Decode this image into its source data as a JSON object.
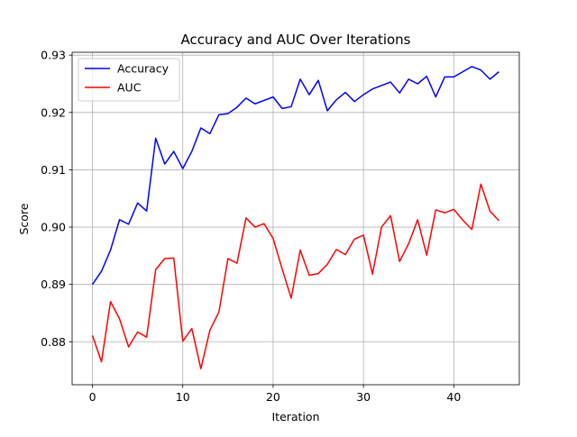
{
  "chart_data": {
    "type": "line",
    "title": "Accuracy and AUC Over Iterations",
    "xlabel": "Iteration",
    "ylabel": "Score",
    "xlim": [
      -2.25,
      47.25
    ],
    "ylim": [
      0.8725,
      0.9305
    ],
    "xticks": [
      0,
      10,
      20,
      30,
      40
    ],
    "xtick_labels": [
      "0",
      "10",
      "20",
      "30",
      "40"
    ],
    "yticks": [
      0.88,
      0.89,
      0.9,
      0.91,
      0.92,
      0.93
    ],
    "ytick_labels": [
      "0.88",
      "0.89",
      "0.90",
      "0.91",
      "0.92",
      "0.93"
    ],
    "grid": true,
    "legend_position": "top-left",
    "x": [
      0,
      1,
      2,
      3,
      4,
      5,
      6,
      7,
      8,
      9,
      10,
      11,
      12,
      13,
      14,
      15,
      16,
      17,
      18,
      19,
      20,
      21,
      22,
      23,
      24,
      25,
      26,
      27,
      28,
      29,
      30,
      31,
      32,
      33,
      34,
      35,
      36,
      37,
      38,
      39,
      40,
      41,
      42,
      43,
      44,
      45
    ],
    "series": [
      {
        "name": "Accuracy",
        "color": "#0000ff",
        "values": [
          0.89,
          0.8923,
          0.896,
          0.9013,
          0.9005,
          0.9042,
          0.9028,
          0.9155,
          0.911,
          0.9132,
          0.9102,
          0.9132,
          0.9173,
          0.9163,
          0.9196,
          0.9198,
          0.9209,
          0.9225,
          0.9215,
          0.9221,
          0.9227,
          0.9207,
          0.921,
          0.9258,
          0.9231,
          0.9256,
          0.9203,
          0.9222,
          0.9235,
          0.9219,
          0.9231,
          0.9241,
          0.9247,
          0.9253,
          0.9234,
          0.9258,
          0.925,
          0.9263,
          0.9227,
          0.9262,
          0.9262,
          0.9271,
          0.928,
          0.9274,
          0.9258,
          0.9271
        ]
      },
      {
        "name": "AUC",
        "color": "#ff0000",
        "values": [
          0.8811,
          0.8765,
          0.887,
          0.884,
          0.8791,
          0.8817,
          0.8808,
          0.8926,
          0.8945,
          0.8946,
          0.8801,
          0.8823,
          0.8753,
          0.882,
          0.8852,
          0.8945,
          0.8937,
          0.9016,
          0.9,
          0.9006,
          0.898,
          0.8927,
          0.8876,
          0.896,
          0.8916,
          0.8919,
          0.8935,
          0.8961,
          0.8952,
          0.8979,
          0.8986,
          0.8918,
          0.9,
          0.902,
          0.894,
          0.8971,
          0.9013,
          0.8951,
          0.903,
          0.9025,
          0.9031,
          0.9012,
          0.8996,
          0.9075,
          0.9028,
          0.9011
        ]
      }
    ]
  }
}
